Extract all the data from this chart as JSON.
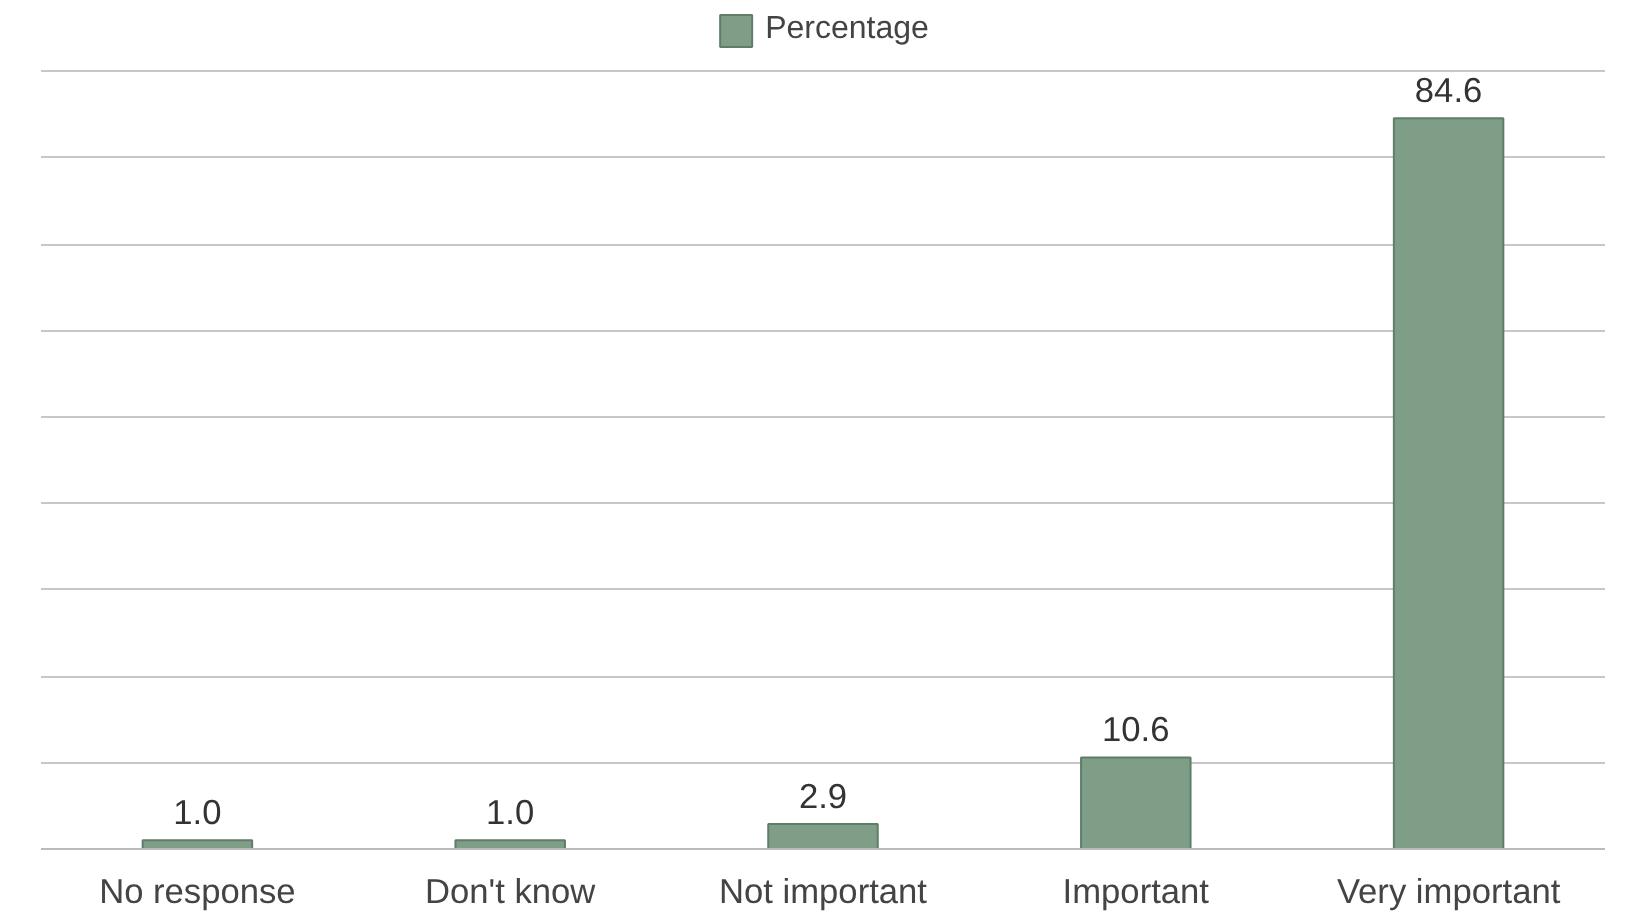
{
  "chart_data": {
    "type": "bar",
    "categories": [
      "No response",
      "Don't know",
      "Not important",
      "Important",
      "Very important"
    ],
    "series": [
      {
        "name": "Percentage",
        "color": "#7e9e88",
        "values": [
          1.0,
          1.0,
          2.9,
          10.6,
          84.6
        ],
        "value_labels": [
          "1.0",
          "1.0",
          "2.9",
          "10.6",
          "84.6"
        ]
      }
    ],
    "ylim": [
      0,
      97
    ],
    "yticks": [
      {
        "value": 0,
        "label": null
      },
      {
        "value": 10,
        "label": null
      },
      {
        "value": 20,
        "label": null
      },
      {
        "value": 30,
        "label": null
      },
      {
        "value": 40,
        "label": null
      },
      {
        "value": 50,
        "label": null
      },
      {
        "value": 60,
        "label": null
      },
      {
        "value": 70,
        "label": null
      },
      {
        "value": 80,
        "label": null
      },
      {
        "value": 90,
        "label": null
      }
    ],
    "grid": "y",
    "legend": "top",
    "tick_labels": "x"
  }
}
